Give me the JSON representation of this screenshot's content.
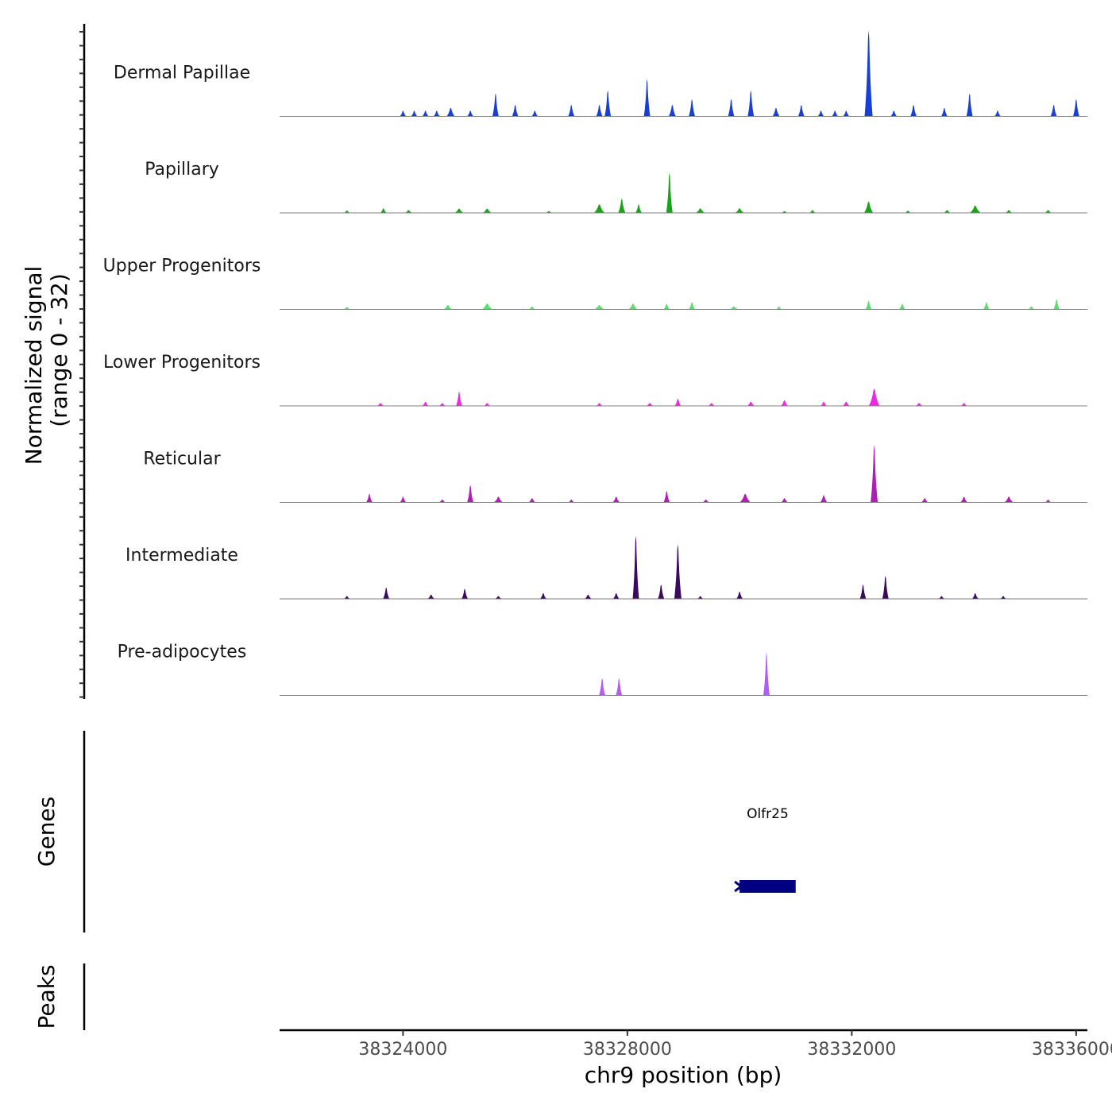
{
  "chart_data": {
    "type": "area",
    "title": "",
    "xlabel": "chr9 position (bp)",
    "ylabel_line1": "Normalized signal",
    "ylabel_line2": "(range 0 - 32)",
    "ylim": [
      0,
      32
    ],
    "xlim": [
      38321800,
      38336200
    ],
    "x_ticks": [
      38324000,
      38328000,
      38332000,
      38336000
    ],
    "x_tick_labels": [
      "38324000",
      "38328000",
      "38332000",
      "38336000"
    ],
    "tracks": [
      {
        "name": "Dermal Papillae",
        "color": "#1a3fd4",
        "peaks": [
          {
            "center": 38324000,
            "height": 2,
            "width": 40
          },
          {
            "center": 38324200,
            "height": 2,
            "width": 40
          },
          {
            "center": 38324400,
            "height": 2,
            "width": 40
          },
          {
            "center": 38324600,
            "height": 2,
            "width": 40
          },
          {
            "center": 38324850,
            "height": 3,
            "width": 90
          },
          {
            "center": 38325200,
            "height": 2,
            "width": 40
          },
          {
            "center": 38325650,
            "height": 8,
            "width": 60
          },
          {
            "center": 38326000,
            "height": 4,
            "width": 60
          },
          {
            "center": 38326350,
            "height": 2,
            "width": 50
          },
          {
            "center": 38327000,
            "height": 4,
            "width": 50
          },
          {
            "center": 38327500,
            "height": 4,
            "width": 50
          },
          {
            "center": 38327650,
            "height": 9,
            "width": 50
          },
          {
            "center": 38328350,
            "height": 13,
            "width": 60
          },
          {
            "center": 38328800,
            "height": 4,
            "width": 80
          },
          {
            "center": 38329150,
            "height": 6,
            "width": 40
          },
          {
            "center": 38329850,
            "height": 6,
            "width": 60
          },
          {
            "center": 38330200,
            "height": 9,
            "width": 60
          },
          {
            "center": 38330650,
            "height": 3,
            "width": 80
          },
          {
            "center": 38331100,
            "height": 4,
            "width": 60
          },
          {
            "center": 38331450,
            "height": 2,
            "width": 40
          },
          {
            "center": 38331700,
            "height": 2,
            "width": 40
          },
          {
            "center": 38331900,
            "height": 2,
            "width": 40
          },
          {
            "center": 38332300,
            "height": 30,
            "width": 90
          },
          {
            "center": 38332750,
            "height": 2,
            "width": 40
          },
          {
            "center": 38333100,
            "height": 4,
            "width": 50
          },
          {
            "center": 38333650,
            "height": 3,
            "width": 50
          },
          {
            "center": 38334100,
            "height": 8,
            "width": 60
          },
          {
            "center": 38334600,
            "height": 2,
            "width": 40
          },
          {
            "center": 38335600,
            "height": 4,
            "width": 70
          },
          {
            "center": 38336000,
            "height": 6,
            "width": 30
          }
        ]
      },
      {
        "name": "Papillary",
        "color": "#1aa31a",
        "peaks": [
          {
            "center": 38323000,
            "height": 0.8,
            "width": 60
          },
          {
            "center": 38323650,
            "height": 1.6,
            "width": 60
          },
          {
            "center": 38324100,
            "height": 1,
            "width": 80
          },
          {
            "center": 38325000,
            "height": 1.5,
            "width": 100
          },
          {
            "center": 38325500,
            "height": 1.5,
            "width": 100
          },
          {
            "center": 38326600,
            "height": 0.6,
            "width": 60
          },
          {
            "center": 38327500,
            "height": 3,
            "width": 120
          },
          {
            "center": 38327900,
            "height": 5,
            "width": 80
          },
          {
            "center": 38328200,
            "height": 3,
            "width": 60
          },
          {
            "center": 38328750,
            "height": 14,
            "width": 50
          },
          {
            "center": 38329300,
            "height": 1.6,
            "width": 100
          },
          {
            "center": 38330000,
            "height": 1.6,
            "width": 100
          },
          {
            "center": 38330800,
            "height": 0.6,
            "width": 50
          },
          {
            "center": 38331300,
            "height": 1,
            "width": 60
          },
          {
            "center": 38332300,
            "height": 4,
            "width": 100
          },
          {
            "center": 38333000,
            "height": 0.8,
            "width": 60
          },
          {
            "center": 38333700,
            "height": 1,
            "width": 80
          },
          {
            "center": 38334200,
            "height": 2.5,
            "width": 120
          },
          {
            "center": 38334800,
            "height": 1,
            "width": 80
          },
          {
            "center": 38335500,
            "height": 1,
            "width": 80
          }
        ]
      },
      {
        "name": "Upper Progenitors",
        "color": "#5ddc6e",
        "peaks": [
          {
            "center": 38323000,
            "height": 0.8,
            "width": 80
          },
          {
            "center": 38324800,
            "height": 1.5,
            "width": 100
          },
          {
            "center": 38325500,
            "height": 2,
            "width": 120
          },
          {
            "center": 38326300,
            "height": 1,
            "width": 80
          },
          {
            "center": 38327500,
            "height": 1.5,
            "width": 120
          },
          {
            "center": 38328100,
            "height": 2,
            "width": 100
          },
          {
            "center": 38328700,
            "height": 2,
            "width": 40
          },
          {
            "center": 38329150,
            "height": 2.5,
            "width": 60
          },
          {
            "center": 38329900,
            "height": 1,
            "width": 100
          },
          {
            "center": 38330700,
            "height": 1,
            "width": 40
          },
          {
            "center": 38332300,
            "height": 3,
            "width": 60
          },
          {
            "center": 38332900,
            "height": 2,
            "width": 40
          },
          {
            "center": 38334400,
            "height": 2.5,
            "width": 60
          },
          {
            "center": 38335200,
            "height": 1,
            "width": 80
          },
          {
            "center": 38335650,
            "height": 3.5,
            "width": 50
          }
        ]
      },
      {
        "name": "Lower Progenitors",
        "color": "#ee2ae0",
        "peaks": [
          {
            "center": 38323600,
            "height": 1,
            "width": 80
          },
          {
            "center": 38324400,
            "height": 1.5,
            "width": 60
          },
          {
            "center": 38324700,
            "height": 1,
            "width": 60
          },
          {
            "center": 38325000,
            "height": 5,
            "width": 60
          },
          {
            "center": 38325500,
            "height": 1,
            "width": 60
          },
          {
            "center": 38327500,
            "height": 1,
            "width": 60
          },
          {
            "center": 38328400,
            "height": 1,
            "width": 80
          },
          {
            "center": 38328900,
            "height": 2.5,
            "width": 60
          },
          {
            "center": 38329500,
            "height": 1,
            "width": 60
          },
          {
            "center": 38330200,
            "height": 1.5,
            "width": 80
          },
          {
            "center": 38330800,
            "height": 2,
            "width": 80
          },
          {
            "center": 38331500,
            "height": 1.5,
            "width": 50
          },
          {
            "center": 38331900,
            "height": 1.5,
            "width": 80
          },
          {
            "center": 38332400,
            "height": 6,
            "width": 120
          },
          {
            "center": 38333200,
            "height": 1,
            "width": 80
          },
          {
            "center": 38334000,
            "height": 1,
            "width": 60
          }
        ]
      },
      {
        "name": "Reticular",
        "color": "#b01fb5",
        "peaks": [
          {
            "center": 38323400,
            "height": 3,
            "width": 60
          },
          {
            "center": 38324000,
            "height": 2,
            "width": 60
          },
          {
            "center": 38324700,
            "height": 1,
            "width": 80
          },
          {
            "center": 38325200,
            "height": 6,
            "width": 60
          },
          {
            "center": 38325700,
            "height": 2,
            "width": 100
          },
          {
            "center": 38326300,
            "height": 1.5,
            "width": 80
          },
          {
            "center": 38327000,
            "height": 1,
            "width": 60
          },
          {
            "center": 38327800,
            "height": 2,
            "width": 80
          },
          {
            "center": 38328700,
            "height": 4,
            "width": 60
          },
          {
            "center": 38329400,
            "height": 1,
            "width": 80
          },
          {
            "center": 38330100,
            "height": 3,
            "width": 120
          },
          {
            "center": 38330800,
            "height": 1.5,
            "width": 80
          },
          {
            "center": 38331500,
            "height": 2.5,
            "width": 80
          },
          {
            "center": 38332400,
            "height": 20,
            "width": 80
          },
          {
            "center": 38333300,
            "height": 1.5,
            "width": 80
          },
          {
            "center": 38334000,
            "height": 2,
            "width": 80
          },
          {
            "center": 38334800,
            "height": 2,
            "width": 100
          },
          {
            "center": 38335500,
            "height": 1,
            "width": 60
          }
        ]
      },
      {
        "name": "Intermediate",
        "color": "#3b0a5e",
        "peaks": [
          {
            "center": 38323000,
            "height": 1,
            "width": 60
          },
          {
            "center": 38323700,
            "height": 4,
            "width": 60
          },
          {
            "center": 38324500,
            "height": 1.5,
            "width": 80
          },
          {
            "center": 38325100,
            "height": 3.5,
            "width": 60
          },
          {
            "center": 38325700,
            "height": 1,
            "width": 80
          },
          {
            "center": 38326500,
            "height": 2,
            "width": 60
          },
          {
            "center": 38327300,
            "height": 1.5,
            "width": 80
          },
          {
            "center": 38327800,
            "height": 2,
            "width": 60
          },
          {
            "center": 38328150,
            "height": 22,
            "width": 70
          },
          {
            "center": 38328600,
            "height": 5,
            "width": 60
          },
          {
            "center": 38328900,
            "height": 19,
            "width": 80
          },
          {
            "center": 38329300,
            "height": 1,
            "width": 60
          },
          {
            "center": 38330000,
            "height": 2.5,
            "width": 50
          },
          {
            "center": 38332200,
            "height": 5,
            "width": 70
          },
          {
            "center": 38332600,
            "height": 8,
            "width": 50
          },
          {
            "center": 38333600,
            "height": 1,
            "width": 60
          },
          {
            "center": 38334200,
            "height": 2,
            "width": 60
          },
          {
            "center": 38334700,
            "height": 1,
            "width": 60
          }
        ]
      },
      {
        "name": "Pre-adipocytes",
        "color": "#b25cf0",
        "peaks": [
          {
            "center": 38327550,
            "height": 6,
            "width": 15
          },
          {
            "center": 38327850,
            "height": 6,
            "width": 15
          },
          {
            "center": 38330480,
            "height": 15,
            "width": 20
          }
        ]
      }
    ],
    "genes": [
      {
        "name": "Olfr25",
        "start": 38330000,
        "end": 38331000,
        "strand": "-",
        "color": "#000080"
      }
    ]
  },
  "labels": {
    "genes_title": "Genes",
    "peaks_title": "Peaks"
  }
}
